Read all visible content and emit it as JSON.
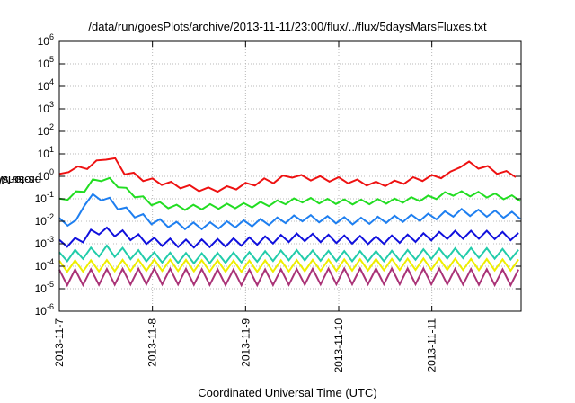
{
  "chart_data": {
    "type": "line",
    "title": "/data/run/goesPlots/archive/2013-11-11/23:00/flux/../flux/5daysMarsFluxes.txt",
    "xlabel": "Coordinated Universal Time (UTC)",
    "ylabel_main": "protons/cm",
    "ylabel_sup": "2",
    "ylabel_rest": "-s-sr-MeV",
    "yscale": "log",
    "ylim": [
      1e-06,
      1000000.0
    ],
    "xlim": [
      "2013-11-07 00:00",
      "2013-11-11 23:00"
    ],
    "x_ticks": [
      "2013-11-7",
      "2013-11-8",
      "2013-11-9",
      "2013-11-10",
      "2013-11-11"
    ],
    "y_ticks": [
      {
        "exp": -6,
        "label": "10",
        "sup": "-6"
      },
      {
        "exp": -5,
        "label": "10",
        "sup": "-5"
      },
      {
        "exp": -4,
        "label": "10",
        "sup": "-4"
      },
      {
        "exp": -3,
        "label": "10",
        "sup": "-3"
      },
      {
        "exp": -2,
        "label": "10",
        "sup": "-2"
      },
      {
        "exp": -1,
        "label": "10",
        "sup": "-1"
      },
      {
        "exp": 0,
        "label": "10",
        "sup": "0"
      },
      {
        "exp": 1,
        "label": "10",
        "sup": "1"
      },
      {
        "exp": 2,
        "label": "10",
        "sup": "2"
      },
      {
        "exp": 3,
        "label": "10",
        "sup": "3"
      },
      {
        "exp": 4,
        "label": "10",
        "sup": "4"
      },
      {
        "exp": 5,
        "label": "10",
        "sup": "5"
      },
      {
        "exp": 6,
        "label": "10",
        "sup": "6"
      }
    ],
    "grid": true,
    "legend": "none",
    "series": [
      {
        "color": "#ee1111",
        "approx_log10_flux": [
          [
            0.0,
            0.0
          ],
          [
            0.1,
            0.3
          ],
          [
            0.25,
            0.35
          ],
          [
            0.4,
            0.6
          ],
          [
            0.5,
            0.85
          ],
          [
            0.55,
            0.8
          ],
          [
            0.6,
            0.7
          ],
          [
            0.7,
            0.2
          ],
          [
            0.9,
            -0.1
          ],
          [
            1.0,
            -0.2
          ],
          [
            1.2,
            -0.35
          ],
          [
            1.4,
            -0.5
          ],
          [
            1.6,
            -0.6
          ],
          [
            1.8,
            -0.55
          ],
          [
            2.0,
            -0.4
          ],
          [
            2.2,
            -0.2
          ],
          [
            2.3,
            -0.2
          ],
          [
            2.5,
            0.05
          ],
          [
            2.6,
            -0.05
          ],
          [
            2.8,
            -0.1
          ],
          [
            3.0,
            -0.15
          ],
          [
            3.2,
            -0.25
          ],
          [
            3.4,
            -0.35
          ],
          [
            3.6,
            -0.3
          ],
          [
            3.8,
            -0.15
          ],
          [
            4.0,
            -0.05
          ],
          [
            4.2,
            0.1
          ],
          [
            4.3,
            0.5
          ],
          [
            4.4,
            0.55
          ],
          [
            4.6,
            0.35
          ],
          [
            4.75,
            0.15
          ],
          [
            4.95,
            0.05
          ]
        ]
      },
      {
        "color": "#22dd22",
        "approx_log10_flux": [
          [
            0.0,
            -1.1
          ],
          [
            0.25,
            -0.65
          ],
          [
            0.4,
            -0.1
          ],
          [
            0.5,
            -0.1
          ],
          [
            0.6,
            -0.3
          ],
          [
            0.75,
            -0.7
          ],
          [
            1.0,
            -1.2
          ],
          [
            1.3,
            -1.4
          ],
          [
            1.6,
            -1.35
          ],
          [
            2.0,
            -1.3
          ],
          [
            2.3,
            -1.2
          ],
          [
            2.6,
            -1.05
          ],
          [
            2.8,
            -1.1
          ],
          [
            3.2,
            -1.15
          ],
          [
            3.6,
            -1.1
          ],
          [
            4.0,
            -0.95
          ],
          [
            4.2,
            -0.75
          ],
          [
            4.5,
            -0.8
          ],
          [
            4.75,
            -0.9
          ],
          [
            4.95,
            -1.0
          ]
        ]
      },
      {
        "color": "#1e7ff0",
        "approx_log10_flux": [
          [
            0.0,
            -2.0
          ],
          [
            0.2,
            -2.1
          ],
          [
            0.25,
            -1.2
          ],
          [
            0.4,
            -0.85
          ],
          [
            0.5,
            -1.0
          ],
          [
            0.7,
            -1.5
          ],
          [
            1.0,
            -2.0
          ],
          [
            1.3,
            -2.2
          ],
          [
            1.6,
            -2.2
          ],
          [
            2.0,
            -2.1
          ],
          [
            2.3,
            -2.0
          ],
          [
            2.6,
            -1.85
          ],
          [
            2.8,
            -1.9
          ],
          [
            3.2,
            -2.0
          ],
          [
            3.6,
            -1.9
          ],
          [
            4.0,
            -1.8
          ],
          [
            4.3,
            -1.6
          ],
          [
            4.6,
            -1.65
          ],
          [
            4.95,
            -1.75
          ]
        ]
      },
      {
        "color": "#1010dd",
        "approx_log10_flux": [
          [
            0.0,
            -3.0
          ],
          [
            0.2,
            -2.9
          ],
          [
            0.4,
            -2.4
          ],
          [
            0.6,
            -2.5
          ],
          [
            0.8,
            -2.7
          ],
          [
            1.0,
            -2.9
          ],
          [
            1.4,
            -3.0
          ],
          [
            1.8,
            -2.95
          ],
          [
            2.2,
            -2.85
          ],
          [
            2.6,
            -2.7
          ],
          [
            3.0,
            -2.8
          ],
          [
            3.4,
            -2.85
          ],
          [
            3.8,
            -2.75
          ],
          [
            4.2,
            -2.6
          ],
          [
            4.6,
            -2.6
          ],
          [
            4.95,
            -2.7
          ]
        ]
      },
      {
        "color": "#22ccaa",
        "approx_log10_flux": [
          [
            0.0,
            -3.6
          ],
          [
            0.5,
            -3.3
          ],
          [
            1.0,
            -3.6
          ],
          [
            1.5,
            -3.65
          ],
          [
            2.0,
            -3.6
          ],
          [
            2.5,
            -3.5
          ],
          [
            3.0,
            -3.55
          ],
          [
            3.5,
            -3.55
          ],
          [
            4.0,
            -3.45
          ],
          [
            4.5,
            -3.4
          ],
          [
            4.95,
            -3.5
          ]
        ]
      },
      {
        "color": "#eeee00",
        "approx_log10_flux": [
          [
            0.0,
            -4.0
          ],
          [
            1.0,
            -3.95
          ],
          [
            2.0,
            -4.0
          ],
          [
            3.0,
            -3.95
          ],
          [
            4.0,
            -3.9
          ],
          [
            4.95,
            -3.95
          ]
        ]
      },
      {
        "color": "#aa3377",
        "approx_log10_flux": [
          [
            0.0,
            -4.5
          ],
          [
            1.0,
            -4.45
          ],
          [
            2.0,
            -4.5
          ],
          [
            3.0,
            -4.45
          ],
          [
            4.0,
            -4.45
          ],
          [
            4.95,
            -4.5
          ]
        ]
      }
    ]
  }
}
